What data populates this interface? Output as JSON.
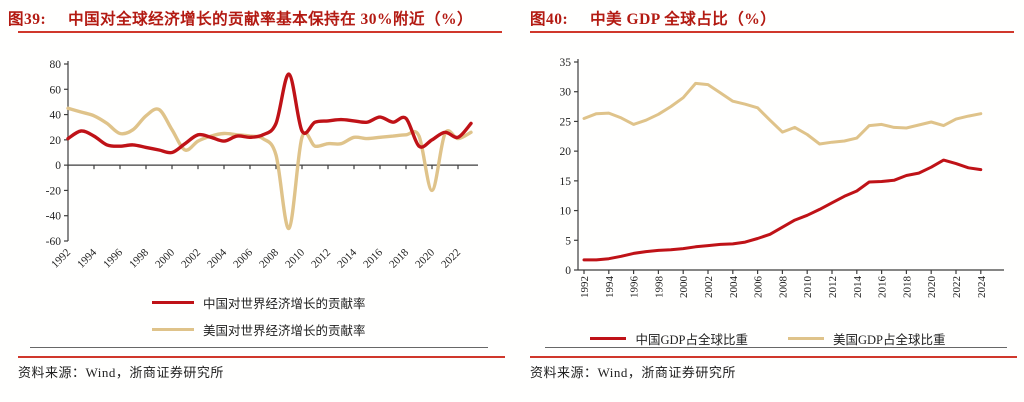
{
  "colors": {
    "title_red": "#b31a12",
    "rule_red": "#d0382c",
    "china_red": "#bf1217",
    "us_tan": "#dfc38a",
    "axis": "#3d3d3d",
    "tick_label": "#222222"
  },
  "chart_data": [
    {
      "type": "line",
      "figure_label": "图39:",
      "title": "中国对全球经济增长的贡献率基本保持在 30%附近（%）",
      "source": "资料来源：Wind，浙商证券研究所",
      "xlabel": "",
      "ylabel": "",
      "x": [
        1992,
        1993,
        1994,
        1995,
        1996,
        1997,
        1998,
        1999,
        2000,
        2001,
        2002,
        2003,
        2004,
        2005,
        2006,
        2007,
        2008,
        2009,
        2010,
        2011,
        2012,
        2013,
        2014,
        2015,
        2016,
        2017,
        2018,
        2019,
        2020,
        2021,
        2022,
        2023
      ],
      "xtick_labels": [
        "1992",
        "1994",
        "1996",
        "1998",
        "2000",
        "2002",
        "2004",
        "2006",
        "2008",
        "2010",
        "2012",
        "2014",
        "2016",
        "2018",
        "2020",
        "2022"
      ],
      "ylim": [
        -60,
        80
      ],
      "ytick_step": 20,
      "grid": false,
      "smooth": true,
      "legend_position": "bottom",
      "xlabel_rotation": -45,
      "series": [
        {
          "name": "中国对世界经济增长的贡献率",
          "color": "#bf1217",
          "values": [
            21,
            27,
            23,
            16,
            15,
            16,
            14,
            12,
            10,
            17,
            24,
            22,
            19,
            23,
            22,
            24,
            33,
            72,
            27,
            34,
            35,
            36,
            35,
            34,
            38,
            34,
            37,
            15,
            20,
            26,
            22,
            33
          ]
        },
        {
          "name": "美国对世界经济增长的贡献率",
          "color": "#dfc38a",
          "values": [
            45,
            42,
            39,
            33,
            25,
            28,
            39,
            44,
            28,
            12,
            19,
            23,
            25,
            24,
            23,
            21,
            8,
            -50,
            22,
            15,
            17,
            17,
            22,
            21,
            22,
            23,
            24,
            23,
            -20,
            25,
            21,
            26
          ]
        }
      ]
    },
    {
      "type": "line",
      "figure_label": "图40:",
      "title": "中美 GDP 全球占比（%）",
      "source": "资料来源：Wind，浙商证券研究所",
      "xlabel": "",
      "ylabel": "",
      "x": [
        1992,
        1993,
        1994,
        1995,
        1996,
        1997,
        1998,
        1999,
        2000,
        2001,
        2002,
        2003,
        2004,
        2005,
        2006,
        2007,
        2008,
        2009,
        2010,
        2011,
        2012,
        2013,
        2014,
        2015,
        2016,
        2017,
        2018,
        2019,
        2020,
        2021,
        2022,
        2023,
        2024
      ],
      "xtick_labels": [
        "1992",
        "1994",
        "1996",
        "1998",
        "2000",
        "2002",
        "2004",
        "2006",
        "2008",
        "2010",
        "2012",
        "2014",
        "2016",
        "2018",
        "2020",
        "2022",
        "2024"
      ],
      "ylim": [
        0,
        35
      ],
      "ytick_step": 5,
      "grid": false,
      "smooth": false,
      "legend_position": "bottom",
      "xlabel_rotation": -90,
      "series": [
        {
          "name": "中国GDP占全球比重",
          "color": "#bf1217",
          "values": [
            1.7,
            1.7,
            1.9,
            2.3,
            2.8,
            3.1,
            3.3,
            3.4,
            3.6,
            3.9,
            4.1,
            4.3,
            4.4,
            4.7,
            5.3,
            6.0,
            7.2,
            8.4,
            9.2,
            10.2,
            11.3,
            12.4,
            13.3,
            14.8,
            14.9,
            15.1,
            15.9,
            16.3,
            17.3,
            18.5,
            17.9,
            17.2,
            16.9
          ]
        },
        {
          "name": "美国GDP占全球比重",
          "color": "#dfc38a",
          "values": [
            25.5,
            26.3,
            26.4,
            25.6,
            24.5,
            25.2,
            26.2,
            27.5,
            29.0,
            31.4,
            31.2,
            29.8,
            28.4,
            27.9,
            27.3,
            25.2,
            23.2,
            24.0,
            22.8,
            21.2,
            21.5,
            21.7,
            22.2,
            24.3,
            24.5,
            24.0,
            23.9,
            24.4,
            24.9,
            24.3,
            25.4,
            25.9,
            26.3
          ]
        }
      ]
    }
  ]
}
